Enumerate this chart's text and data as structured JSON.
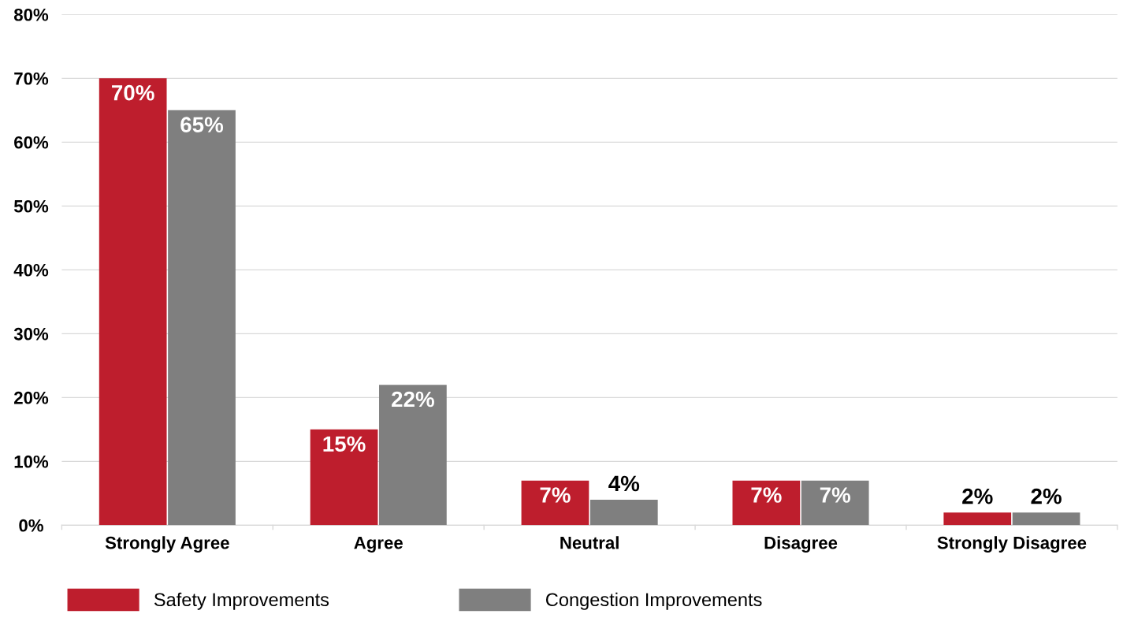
{
  "chart_data": {
    "type": "bar",
    "categories": [
      "Strongly Agree",
      "Agree",
      "Neutral",
      "Disagree",
      "Strongly Disagree"
    ],
    "series": [
      {
        "name": "Safety Improvements",
        "color": "#be1e2d",
        "values": [
          70,
          15,
          7,
          7,
          2
        ],
        "value_labels": [
          "70%",
          "15%",
          "7%",
          "7%",
          "2%"
        ]
      },
      {
        "name": "Congestion Improvements",
        "color": "#7f7f7f",
        "values": [
          65,
          22,
          4,
          7,
          2
        ],
        "value_labels": [
          "65%",
          "22%",
          "4%",
          "7%",
          "2%"
        ]
      }
    ],
    "ylim": [
      0,
      80
    ],
    "yticks": [
      {
        "value": 0,
        "label": "0%"
      },
      {
        "value": 10,
        "label": "10%"
      },
      {
        "value": 20,
        "label": "20%"
      },
      {
        "value": 30,
        "label": "30%"
      },
      {
        "value": 40,
        "label": "40%"
      },
      {
        "value": 50,
        "label": "50%"
      },
      {
        "value": 60,
        "label": "60%"
      },
      {
        "value": 70,
        "label": "70%"
      },
      {
        "value": 80,
        "label": "80%"
      }
    ],
    "grid": "y",
    "legend": "bottom left"
  }
}
